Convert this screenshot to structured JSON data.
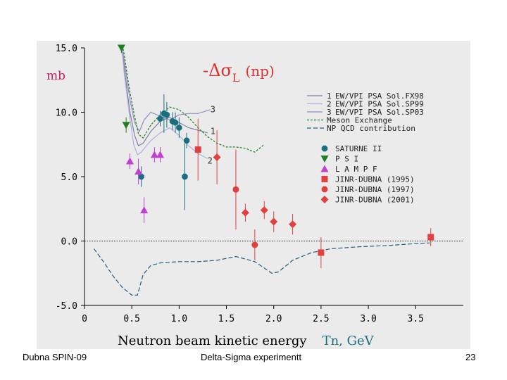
{
  "chart_data": {
    "type": "scatter",
    "title": "-Δσ",
    "title_sub": "L",
    "title_suffix": "(np)",
    "ylabel": "mb",
    "xlabel": "Neutron beam kinetic energy",
    "xlabel_suffix": "Tn,  GeV",
    "xlim": [
      0,
      3.9
    ],
    "ylim": [
      -5,
      15
    ],
    "x_ticks": [
      0,
      0.5,
      1.0,
      1.5,
      2.0,
      2.5,
      3.0,
      3.5
    ],
    "x_tick_labels": [
      "0",
      "0.5",
      "1.0",
      "1.5",
      "2.0",
      "2.5",
      "3.0",
      "3.5"
    ],
    "y_ticks": [
      15,
      10,
      5,
      0,
      -5
    ],
    "y_tick_labels": [
      "15.0",
      "10.0",
      "5.0",
      "0.0",
      "-5.0"
    ],
    "zero_line": true,
    "curve_labels": [
      {
        "text": "3",
        "x": 1.33,
        "y": 10.0
      },
      {
        "text": "1",
        "x": 1.33,
        "y": 8.3
      },
      {
        "text": "2",
        "x": 1.3,
        "y": 6.0
      }
    ],
    "curves": [
      {
        "name": "EW/VPI PSA Sol.FX98",
        "num": "1",
        "color": "#8080a0",
        "dash": "",
        "points": [
          [
            0.38,
            16
          ],
          [
            0.42,
            13.5
          ],
          [
            0.48,
            10
          ],
          [
            0.53,
            8.2
          ],
          [
            0.57,
            7.4
          ],
          [
            0.62,
            7.6
          ],
          [
            0.7,
            8.5
          ],
          [
            0.8,
            9.3
          ],
          [
            0.9,
            9.6
          ],
          [
            1.0,
            9.2
          ],
          [
            1.1,
            8.8
          ],
          [
            1.2,
            8.6
          ],
          [
            1.3,
            8.4
          ]
        ]
      },
      {
        "name": "EW/VPI PSA Sol.SP99",
        "num": "2",
        "color": "#b0b0e0",
        "dash": "",
        "points": [
          [
            0.38,
            16
          ],
          [
            0.42,
            13
          ],
          [
            0.48,
            9.5
          ],
          [
            0.52,
            7.5
          ],
          [
            0.56,
            6.7
          ],
          [
            0.6,
            6.9
          ],
          [
            0.7,
            7.8
          ],
          [
            0.8,
            8.4
          ],
          [
            0.9,
            8.8
          ],
          [
            1.0,
            8.2
          ],
          [
            1.1,
            7.4
          ],
          [
            1.2,
            6.8
          ],
          [
            1.3,
            6.4
          ]
        ]
      },
      {
        "name": "EW/VPI PSA Sol.SP03",
        "num": "3",
        "color": "#9090c0",
        "dash": "",
        "points": [
          [
            0.38,
            16
          ],
          [
            0.42,
            14
          ],
          [
            0.48,
            11
          ],
          [
            0.53,
            9.2
          ],
          [
            0.58,
            8.5
          ],
          [
            0.63,
            9.4
          ],
          [
            0.7,
            10.0
          ],
          [
            0.8,
            9.7
          ],
          [
            0.9,
            9.4
          ],
          [
            1.0,
            9.8
          ],
          [
            1.1,
            9.9
          ],
          [
            1.2,
            9.9
          ],
          [
            1.33,
            10.2
          ]
        ]
      },
      {
        "name": "Meson Exchange",
        "num": "",
        "color": "#208020",
        "dash": "3,2",
        "points": [
          [
            0.38,
            16
          ],
          [
            0.42,
            14.5
          ],
          [
            0.47,
            12
          ],
          [
            0.52,
            10
          ],
          [
            0.57,
            8.3
          ],
          [
            0.62,
            8.0
          ],
          [
            0.7,
            9.0
          ],
          [
            0.8,
            9.8
          ],
          [
            0.9,
            10.4
          ],
          [
            1.0,
            10.2
          ],
          [
            1.1,
            9.6
          ],
          [
            1.2,
            8.8
          ],
          [
            1.3,
            8.1
          ],
          [
            1.4,
            7.6
          ],
          [
            1.5,
            7.3
          ],
          [
            1.6,
            7.3
          ],
          [
            1.7,
            7.2
          ],
          [
            1.8,
            6.9
          ],
          [
            1.9,
            7.5
          ]
        ]
      },
      {
        "name": "NP QCD contribution",
        "num": "",
        "color": "#206080",
        "dash": "6,3",
        "points": [
          [
            0.1,
            -0.6
          ],
          [
            0.2,
            -1.6
          ],
          [
            0.3,
            -2.7
          ],
          [
            0.4,
            -3.6
          ],
          [
            0.5,
            -4.2
          ],
          [
            0.56,
            -4.2
          ],
          [
            0.62,
            -2.6
          ],
          [
            0.7,
            -1.9
          ],
          [
            0.8,
            -1.7
          ],
          [
            1.0,
            -1.6
          ],
          [
            1.2,
            -1.6
          ],
          [
            1.4,
            -1.5
          ],
          [
            1.6,
            -1.2
          ],
          [
            1.7,
            -1.4
          ],
          [
            1.8,
            -1.6
          ],
          [
            1.9,
            -2.1
          ],
          [
            1.98,
            -2.5
          ],
          [
            2.05,
            -2.4
          ],
          [
            2.2,
            -1.5
          ],
          [
            2.4,
            -0.9
          ],
          [
            2.6,
            -0.6
          ],
          [
            2.9,
            -0.45
          ],
          [
            3.2,
            -0.35
          ],
          [
            3.5,
            -0.2
          ],
          [
            3.65,
            -0.15
          ]
        ]
      }
    ],
    "series": [
      {
        "name": "SATURNE II",
        "color": "#1a6e80",
        "marker": "octagon",
        "points": [
          {
            "x": 0.6,
            "y": 5.0,
            "err": 0.8
          },
          {
            "x": 0.8,
            "y": 9.5,
            "err": 0.6
          },
          {
            "x": 0.84,
            "y": 9.9,
            "err": 1.5
          },
          {
            "x": 0.87,
            "y": 9.8,
            "err": 1.0
          },
          {
            "x": 0.93,
            "y": 9.3,
            "err": 0.7
          },
          {
            "x": 0.96,
            "y": 9.2,
            "err": 0.8
          },
          {
            "x": 1.0,
            "y": 8.8,
            "err": 0.8
          },
          {
            "x": 1.06,
            "y": 5.0,
            "err": 2.6
          },
          {
            "x": 1.08,
            "y": 7.8,
            "err": 0.6
          }
        ]
      },
      {
        "name": "P S I",
        "color": "#208020",
        "marker": "triangle-down",
        "points": [
          {
            "x": 0.39,
            "y": 15.0,
            "err": 0.4
          },
          {
            "x": 0.44,
            "y": 9.0,
            "err": 0.6
          }
        ]
      },
      {
        "name": "L A M P F",
        "color": "#c040d0",
        "marker": "triangle-up",
        "points": [
          {
            "x": 0.48,
            "y": 6.2,
            "err": 0.6
          },
          {
            "x": 0.57,
            "y": 5.4,
            "err": 1.0
          },
          {
            "x": 0.63,
            "y": 2.4,
            "err": 1.0
          },
          {
            "x": 0.74,
            "y": 6.7,
            "err": 0.6
          },
          {
            "x": 0.8,
            "y": 6.7,
            "err": 0.6
          }
        ]
      },
      {
        "name": "JINR-DUBNA (1995)",
        "color": "#e04040",
        "marker": "square",
        "points": [
          {
            "x": 1.2,
            "y": 7.1,
            "err": 2.4
          },
          {
            "x": 2.5,
            "y": -0.9,
            "err": 1.2
          },
          {
            "x": 3.66,
            "y": 0.3,
            "err": 0.7
          }
        ]
      },
      {
        "name": "JINR-DUBNA (1997)",
        "color": "#e04040",
        "marker": "circle",
        "points": [
          {
            "x": 1.6,
            "y": 4.0,
            "err": 3.1
          },
          {
            "x": 1.8,
            "y": -0.3,
            "err": 1.2
          }
        ]
      },
      {
        "name": "JINR-DUBNA (2001)",
        "color": "#e04040",
        "marker": "diamond",
        "points": [
          {
            "x": 1.4,
            "y": 6.5,
            "err": 2.1
          },
          {
            "x": 1.7,
            "y": 2.2,
            "err": 0.7
          },
          {
            "x": 1.9,
            "y": 2.4,
            "err": 0.7
          },
          {
            "x": 2.0,
            "y": 1.5,
            "err": 0.8
          },
          {
            "x": 2.2,
            "y": 1.3,
            "err": 0.8
          }
        ]
      }
    ],
    "legend_placement": "right"
  },
  "footer": {
    "left": "Dubna SPIN-09",
    "center": "Delta-Sigma experimentt",
    "page": "23"
  }
}
